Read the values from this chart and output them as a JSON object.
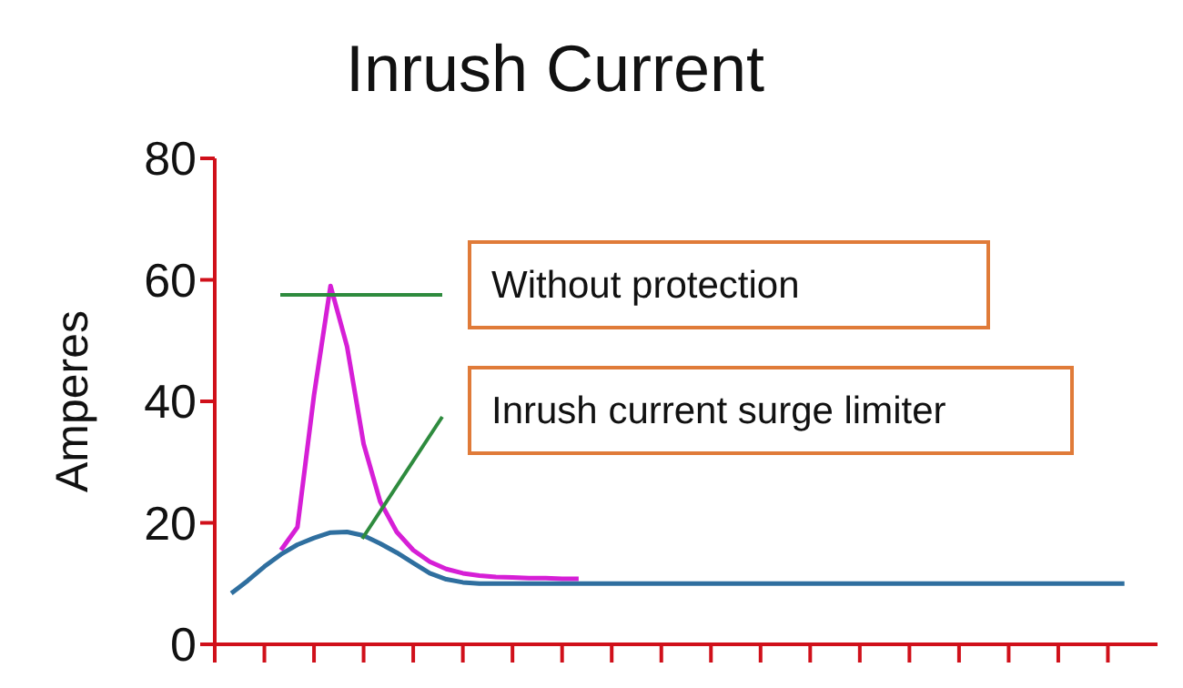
{
  "chart_data": {
    "type": "line",
    "title": "Inrush Current",
    "ylabel": "Amperes",
    "categories": [
      null,
      null,
      null,
      null,
      null,
      null,
      null,
      null,
      null,
      null,
      null,
      null,
      null,
      null,
      null,
      null,
      null,
      null,
      null,
      null,
      null,
      null,
      null,
      null,
      null,
      null,
      null,
      null,
      null,
      null,
      null,
      null,
      null,
      null,
      null,
      null,
      null,
      null,
      null,
      null,
      null,
      null,
      null,
      null,
      null,
      null,
      null,
      null,
      null,
      null,
      null,
      null,
      null,
      null,
      null,
      null,
      null
    ],
    "ylim": [
      0,
      80
    ],
    "yticks": [
      0,
      20,
      40,
      60,
      80
    ],
    "grid": false,
    "marker": "none",
    "line_style": "solid",
    "series": [
      {
        "color": "#d61fd6",
        "values": [
          null,
          null,
          null,
          null,
          15.5,
          19.3,
          41,
          59,
          49,
          33,
          23.5,
          18.5,
          15.5,
          13.6,
          12.4,
          11.7,
          11.3,
          11.1,
          11,
          10.9,
          10.9,
          10.8,
          10.8,
          null,
          null,
          null,
          null,
          null,
          null,
          null,
          null,
          null,
          null,
          null,
          null,
          null,
          null,
          null,
          null,
          null,
          null,
          null,
          null,
          null,
          null,
          null,
          null,
          null,
          null,
          null,
          null,
          null,
          null,
          null,
          null,
          null,
          null
        ]
      },
      {
        "color": "#2f6f9f",
        "values": [
          null,
          8.4,
          10.5,
          12.8,
          14.8,
          16.4,
          17.5,
          18.4,
          18.5,
          17.9,
          16.6,
          15.1,
          13.4,
          11.7,
          10.7,
          10.2,
          10,
          10,
          10,
          10,
          10,
          10,
          10,
          10,
          10,
          10,
          10,
          10,
          10,
          10,
          10,
          10,
          10,
          10,
          10,
          10,
          10,
          10,
          10,
          10,
          10,
          10,
          10,
          10,
          10,
          10,
          10,
          10,
          10,
          10,
          10,
          10,
          10,
          10,
          10,
          10,
          null
        ]
      }
    ],
    "annotations": [
      "Without protection",
      "Inrush current surge limiter"
    ]
  }
}
